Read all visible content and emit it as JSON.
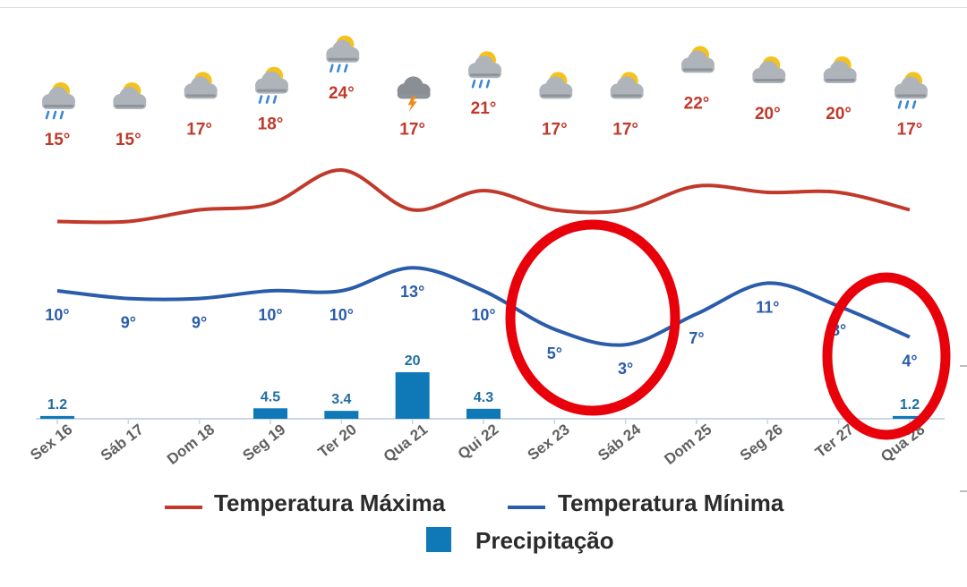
{
  "chart_data": {
    "type": "line",
    "title": "",
    "categories": [
      "Sex 16",
      "Sáb 17",
      "Dom 18",
      "Seg 19",
      "Ter 20",
      "Qua 21",
      "Qui 22",
      "Sex 23",
      "Sáb 24",
      "Dom 25",
      "Seg 26",
      "Ter 27",
      "Qua 28"
    ],
    "icons": [
      "sun-cloud-rain-icon",
      "sun-cloud-icon",
      "sun-cloud-icon",
      "sun-cloud-rain-icon",
      "sun-cloud-rain-icon",
      "thunderstorm-icon",
      "sun-cloud-rain-icon",
      "sun-cloud-icon",
      "sun-cloud-icon",
      "sun-cloud-icon",
      "sun-cloud-icon",
      "sun-cloud-icon",
      "sun-cloud-rain-icon"
    ],
    "series": [
      {
        "name": "Temperatura Máxima",
        "type": "line",
        "color": "#c0392b",
        "values": [
          15,
          15,
          17,
          18,
          24,
          17,
          21,
          17,
          17,
          22,
          20,
          20,
          17
        ],
        "labels": [
          "15°",
          "15°",
          "17°",
          "18°",
          "24°",
          "17°",
          "21°",
          "17°",
          "17°",
          "22°",
          "20°",
          "20°",
          "17°"
        ]
      },
      {
        "name": "Temperatura Mínima",
        "type": "line",
        "color": "#2a5caa",
        "values": [
          10,
          9,
          9,
          10,
          10,
          13,
          10,
          5,
          3,
          7,
          11,
          8,
          4
        ],
        "labels": [
          "10°",
          "9°",
          "9°",
          "10°",
          "10°",
          "13°",
          "10°",
          "5°",
          "3°",
          "7°",
          "11°",
          "8°",
          "4°"
        ]
      },
      {
        "name": "Precipitação",
        "type": "bar",
        "color": "#0f78b6",
        "values": [
          1.2,
          0,
          0,
          4.5,
          3.4,
          20,
          4.3,
          0,
          0,
          0,
          0,
          0,
          1.2
        ],
        "labels": [
          "1.2",
          "",
          "",
          "4.5",
          "3.4",
          "20",
          "4.3",
          "",
          "",
          "",
          "",
          "",
          "1.2"
        ]
      }
    ],
    "legend": {
      "position": "bottom"
    },
    "annotations": [
      {
        "type": "ellipse",
        "color": "#e8000b",
        "around": [
          "Sex 23",
          "Sáb 24"
        ]
      },
      {
        "type": "ellipse",
        "color": "#e8000b",
        "around": [
          "Qua 28"
        ]
      }
    ],
    "grid": false
  }
}
